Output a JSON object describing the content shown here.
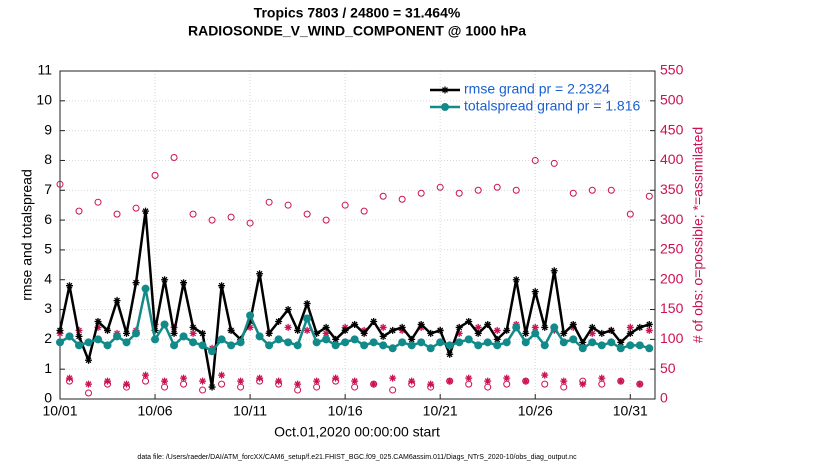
{
  "chart_data": {
    "type": "line",
    "title": "Tropics 7803 / 24800 = 31.464%",
    "subtitle": "RADIOSONDE_V_WIND_COMPONENT @ 1000 hPa",
    "xlabel": "Oct.01,2020 00:00:00 start",
    "ylabel": "rmse and totalspread",
    "y2label": "# of obs: o=possible; *=assimilated",
    "footnote": "data file: /Users/raeder/DAI/ATM_forcXX/CAM6_setup/f.e21.FHIST_BGC.f09_025.CAM6assim.011/Diags_NTrS_2020-10/obs_diag_output.nc",
    "x": [
      1,
      1.5,
      2,
      2.5,
      3,
      3.5,
      4,
      4.5,
      5,
      5.5,
      6,
      6.5,
      7,
      7.5,
      8,
      8.5,
      9,
      9.5,
      10,
      10.5,
      11,
      11.5,
      12,
      12.5,
      13,
      13.5,
      14,
      14.5,
      15,
      15.5,
      16,
      16.5,
      17,
      17.5,
      18,
      18.5,
      19,
      19.5,
      20,
      20.5,
      21,
      21.5,
      22,
      22.5,
      23,
      23.5,
      24,
      24.5,
      25,
      25.5,
      26,
      26.5,
      27,
      27.5,
      28,
      28.5,
      29,
      29.5,
      30,
      30.5,
      31,
      31.5,
      32
    ],
    "xlim": [
      1,
      32.3
    ],
    "xticks": [
      {
        "value": 1,
        "label": "10/01"
      },
      {
        "value": 6,
        "label": "10/06"
      },
      {
        "value": 11,
        "label": "10/11"
      },
      {
        "value": 16,
        "label": "10/16"
      },
      {
        "value": 21,
        "label": "10/21"
      },
      {
        "value": 26,
        "label": "10/26"
      },
      {
        "value": 31,
        "label": "10/31"
      }
    ],
    "ylim": [
      0,
      11
    ],
    "yticks": [
      0,
      1,
      2,
      3,
      4,
      5,
      6,
      7,
      8,
      9,
      10,
      11
    ],
    "y2lim": [
      0,
      550
    ],
    "y2ticks": [
      0,
      50,
      100,
      150,
      200,
      250,
      300,
      350,
      400,
      450,
      500,
      550
    ],
    "grid": true,
    "legend": "upper right",
    "series": [
      {
        "name": "rmse grand pr = 2.2324",
        "color": "#000000",
        "marker": "star",
        "values": [
          2.3,
          3.8,
          2.1,
          1.3,
          2.6,
          2.3,
          3.3,
          2.2,
          3.9,
          6.3,
          2.3,
          4.0,
          2.2,
          3.9,
          2.4,
          2.2,
          0.4,
          3.8,
          2.3,
          2.0,
          2.6,
          4.2,
          2.2,
          2.6,
          3.0,
          2.3,
          3.2,
          2.2,
          2.4,
          2.0,
          2.3,
          2.5,
          2.2,
          2.6,
          2.1,
          2.3,
          2.4,
          2.0,
          2.5,
          2.2,
          2.3,
          1.5,
          2.4,
          2.6,
          2.2,
          2.5,
          2.0,
          2.3,
          4.0,
          2.2,
          3.6,
          2.4,
          4.3,
          2.2,
          2.5,
          1.9,
          2.4,
          2.2,
          2.3,
          1.9,
          2.2,
          2.4,
          2.5
        ]
      },
      {
        "name": "totalspread grand pr = 1.816",
        "color": "#138a8a",
        "marker": "circle",
        "values": [
          1.9,
          2.1,
          1.8,
          1.9,
          2.0,
          1.8,
          2.1,
          1.9,
          2.2,
          3.7,
          2.0,
          2.5,
          1.8,
          2.1,
          1.9,
          1.8,
          1.6,
          2.0,
          1.8,
          1.9,
          2.8,
          2.1,
          1.8,
          2.0,
          1.9,
          1.8,
          2.7,
          1.9,
          2.0,
          1.8,
          1.9,
          2.0,
          1.8,
          1.9,
          1.8,
          1.7,
          1.9,
          1.8,
          1.9,
          1.7,
          1.9,
          1.8,
          1.9,
          2.0,
          1.8,
          1.9,
          1.8,
          1.9,
          2.4,
          1.9,
          2.2,
          1.8,
          2.4,
          1.9,
          2.0,
          1.7,
          1.9,
          1.8,
          1.9,
          1.7,
          1.8,
          1.8,
          1.7
        ]
      },
      {
        "color": "#cc1155",
        "marker": "open-circle",
        "axis": "y2",
        "values": [
          360,
          30,
          315,
          10,
          330,
          25,
          310,
          20,
          320,
          30,
          375,
          20,
          405,
          25,
          310,
          15,
          300,
          25,
          305,
          20,
          295,
          30,
          330,
          25,
          325,
          15,
          310,
          20,
          300,
          30,
          325,
          20,
          315,
          25,
          340,
          15,
          335,
          25,
          345,
          20,
          355,
          30,
          345,
          25,
          350,
          20,
          355,
          25,
          350,
          30,
          400,
          25,
          395,
          20,
          345,
          30,
          350,
          25,
          350,
          30,
          310,
          25,
          340
        ]
      },
      {
        "color": "#cc1155",
        "marker": "star",
        "axis": "y2",
        "values": [
          110,
          35,
          115,
          25,
          120,
          30,
          110,
          25,
          115,
          40,
          125,
          30,
          120,
          35,
          110,
          30,
          85,
          40,
          115,
          30,
          120,
          35,
          110,
          30,
          120,
          25,
          115,
          30,
          110,
          35,
          120,
          30,
          115,
          25,
          120,
          35,
          115,
          30,
          120,
          25,
          115,
          30,
          110,
          35,
          120,
          30,
          115,
          35,
          125,
          30,
          120,
          40,
          115,
          30,
          120,
          25,
          110,
          35,
          115,
          30,
          120,
          25,
          115
        ]
      }
    ]
  }
}
